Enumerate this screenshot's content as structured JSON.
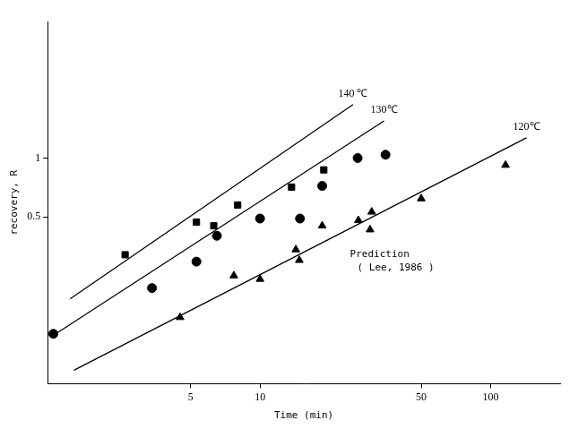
{
  "chart_data": {
    "type": "scatter",
    "x_label": "Time (min)",
    "y_label": "recovery, R",
    "log": true,
    "grid": false,
    "xlim": [
      1.2,
      200
    ],
    "ylim": [
      0.07,
      5
    ],
    "xticks": [
      5,
      10,
      50,
      100
    ],
    "yticks": [
      0.5,
      1
    ],
    "series": [
      {
        "name": "140 ℃",
        "marker": "square",
        "color": "#000000",
        "x": [
          2.6,
          5.3,
          6.3,
          8.0,
          13.7,
          18.9
        ],
        "values": [
          0.32,
          0.47,
          0.45,
          0.575,
          0.71,
          0.87
        ],
        "prediction_x": [
          1.5,
          25.3
        ],
        "prediction_values": [
          0.19,
          1.88
        ]
      },
      {
        "name": "130℃",
        "marker": "circle",
        "color": "#000000",
        "x": [
          1.27,
          3.4,
          5.3,
          6.5,
          10,
          14.9,
          18.6,
          26.5,
          35
        ],
        "values": [
          0.126,
          0.216,
          0.295,
          0.4,
          0.49,
          0.49,
          0.72,
          1.0,
          1.04
        ],
        "prediction_x": [
          1.3,
          34.5
        ],
        "prediction_values": [
          0.126,
          1.55
        ]
      },
      {
        "name": "120℃",
        "marker": "triangle",
        "color": "#000000",
        "x": [
          4.5,
          7.7,
          10,
          14.3,
          14.8,
          18.6,
          26.7,
          30,
          30.5,
          50,
          116
        ],
        "values": [
          0.153,
          0.25,
          0.24,
          0.34,
          0.3,
          0.45,
          0.48,
          0.43,
          0.53,
          0.62,
          0.92
        ],
        "prediction_x": [
          1.56,
          143
        ],
        "prediction_values": [
          0.082,
          1.27
        ]
      }
    ],
    "annotation": [
      "Prediction",
      "( Lee, 1986 )"
    ]
  }
}
